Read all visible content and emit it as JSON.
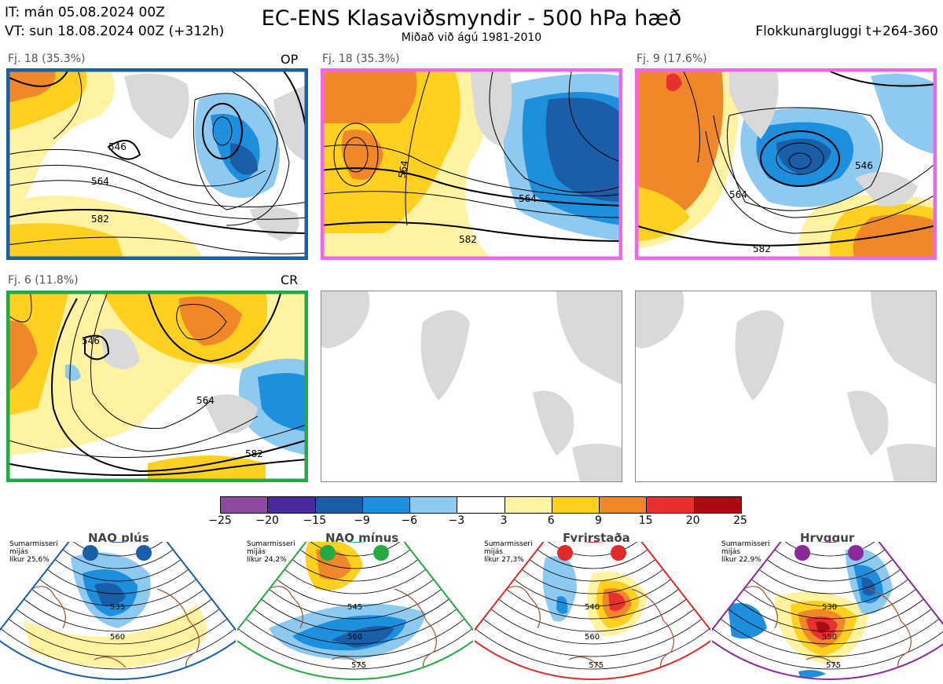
{
  "header": {
    "it": "IT: mán 05.08.2024 00Z",
    "vt": "VT: sun 18.08.2024 00Z  (+312h)",
    "title": "EC-ENS Klasaviðsmyndir - 500 hPa hæð",
    "subtitle": "Miðað við ágú 1981-2010",
    "window": "Flokkunargluggi t+264-360"
  },
  "panels": [
    {
      "label": "Fj. 18 (35.3%)",
      "tag": "OP",
      "border": "#1a5ea8",
      "contours": [
        "546",
        "564",
        "582"
      ]
    },
    {
      "label": "Fj. 18 (35.3%)",
      "tag": "",
      "border": "#ee66ee",
      "contours": [
        "564",
        "564",
        "582"
      ]
    },
    {
      "label": "Fj. 9 (17.6%)",
      "tag": "",
      "border": "#ee66ee",
      "contours": [
        "546",
        "564",
        "582"
      ]
    },
    {
      "label": "Fj. 6 (11.8%)",
      "tag": "CR",
      "border": "#22aa44",
      "contours": [
        "546",
        "564",
        "582"
      ]
    }
  ],
  "colorbar": {
    "ticks": [
      "−25",
      "−20",
      "−15",
      "−9",
      "−6",
      "−3",
      "3",
      "6",
      "9",
      "15",
      "20",
      "25"
    ],
    "colors": [
      "#8e4aa0",
      "#4a2a9a",
      "#1a5ea8",
      "#1e8fdc",
      "#8ec9ef",
      "#ffffff",
      "#fff2a0",
      "#ffd020",
      "#f0882a",
      "#e83030",
      "#a80c10"
    ]
  },
  "regimes": [
    {
      "name": "NAO plús",
      "note": [
        "Sumarmisseri",
        "mijás",
        "líkur 25,6%"
      ],
      "color": "#1a5ea8",
      "contours": [
        "535",
        "560"
      ]
    },
    {
      "name": "NAO mínus",
      "note": [
        "Sumarmisseri",
        "mijás",
        "líkur 24,2%"
      ],
      "color": "#22aa44",
      "contours": [
        "545",
        "560",
        "575"
      ]
    },
    {
      "name": "Fyrirstaða",
      "note": [
        "Sumarmisseri",
        "mijás",
        "líkur 27,3%"
      ],
      "color": "#e02a2a",
      "contours": [
        "540",
        "560",
        "575"
      ]
    },
    {
      "name": "Hryggur",
      "note": [
        "Sumarmisseri",
        "mijás",
        "líkur 22,9%"
      ],
      "color": "#8a2a9a",
      "contours": [
        "530",
        "550",
        "575"
      ]
    }
  ]
}
